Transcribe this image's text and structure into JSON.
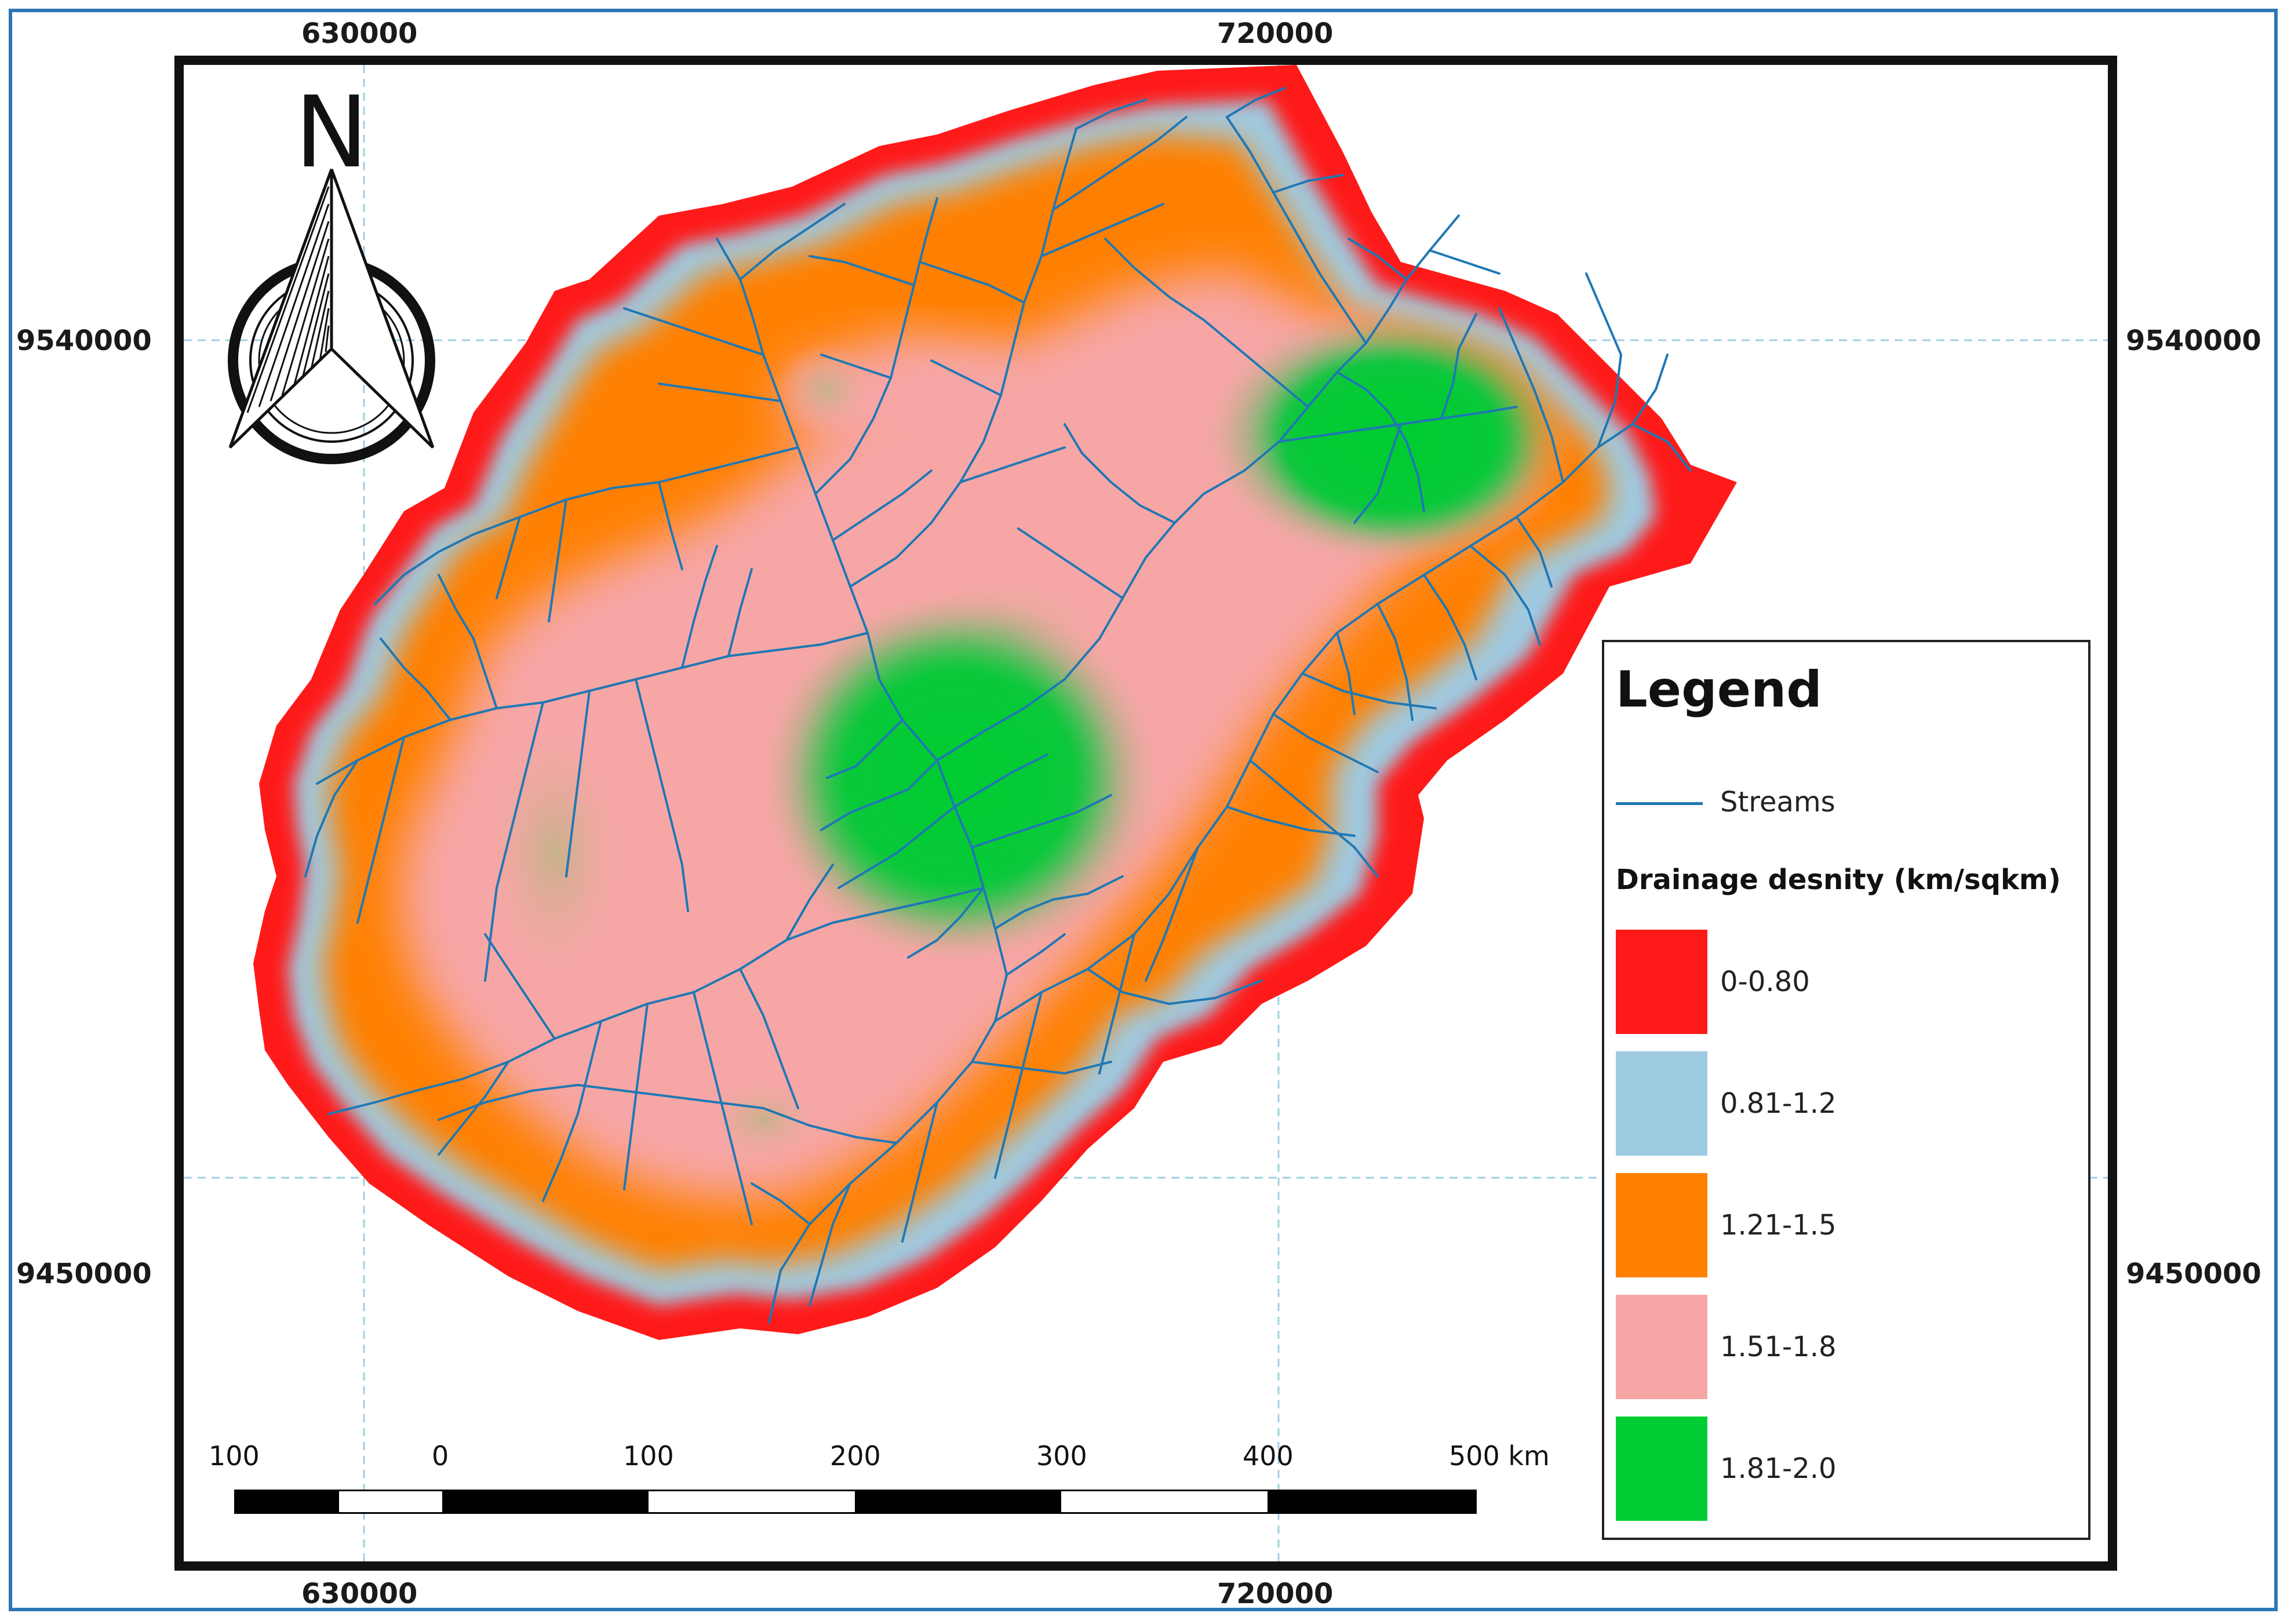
{
  "map": {
    "grid_labels": {
      "top": [
        "630000",
        "720000"
      ],
      "bottom": [
        "630000",
        "720000"
      ],
      "left": [
        "9540000",
        "9450000"
      ],
      "right": [
        "9540000",
        "9450000"
      ]
    },
    "north_arrow_letter": "N",
    "legend": {
      "title": "Legend",
      "stream_label": "Streams",
      "stream_color": "#1f78b4",
      "density_title": "Drainage desnity (km/sqkm)",
      "classes": [
        {
          "label": "0-0.80",
          "color": "#ff1a1a"
        },
        {
          "label": "0.81-1.2",
          "color": "#9ecae1"
        },
        {
          "label": "1.21-1.5",
          "color": "#ff8000"
        },
        {
          "label": "1.51-1.8",
          "color": "#f7a6a6"
        },
        {
          "label": "1.81-2.0",
          "color": "#00cc33"
        }
      ]
    },
    "scale_bar": {
      "labels": [
        "100",
        "0",
        "100",
        "200",
        "300",
        "400",
        "500 km"
      ]
    }
  }
}
